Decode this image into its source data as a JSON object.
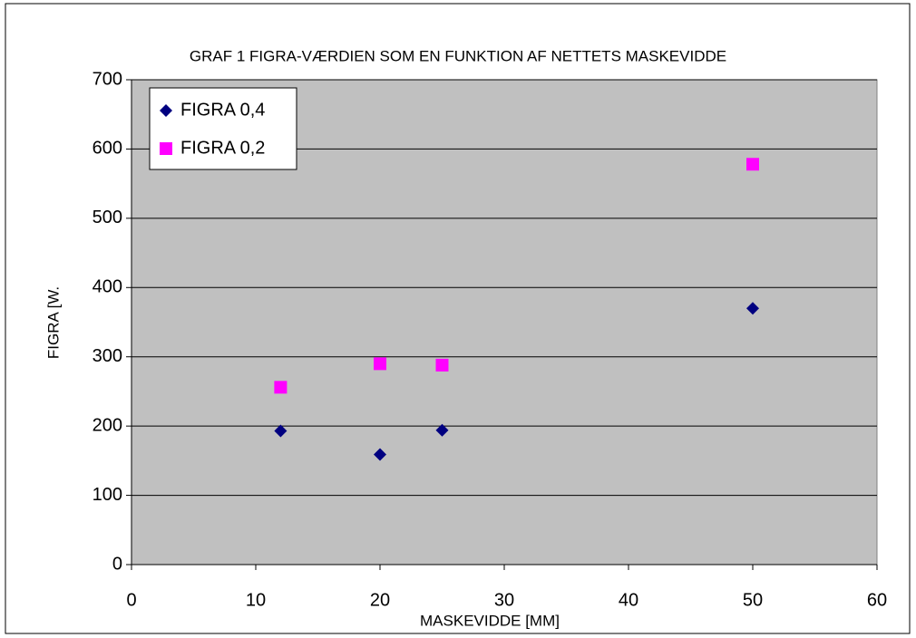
{
  "chart_data": {
    "type": "scatter",
    "title": "GRAF 1 FIGRA-VÆRDIEN SOM EN FUNKTION AF NETTETS MASKEVIDDE",
    "xlabel": "MASKEVIDDE [MM]",
    "ylabel": "FIGRA [W.",
    "x": [
      12,
      20,
      25,
      50
    ],
    "series": [
      {
        "name": "FIGRA 0,4",
        "color": "#000080",
        "marker": "diamond",
        "values": [
          193,
          159,
          194,
          370
        ]
      },
      {
        "name": "FIGRA 0,2",
        "color": "#ff00ff",
        "marker": "square",
        "values": [
          256,
          290,
          288,
          578
        ]
      }
    ],
    "xlim": [
      0,
      60
    ],
    "xticks": [
      0,
      10,
      20,
      30,
      40,
      50,
      60
    ],
    "ylim": [
      0,
      700
    ],
    "yticks": [
      0,
      100,
      200,
      300,
      400,
      500,
      600,
      700
    ],
    "grid": true,
    "legend": "upper left"
  }
}
